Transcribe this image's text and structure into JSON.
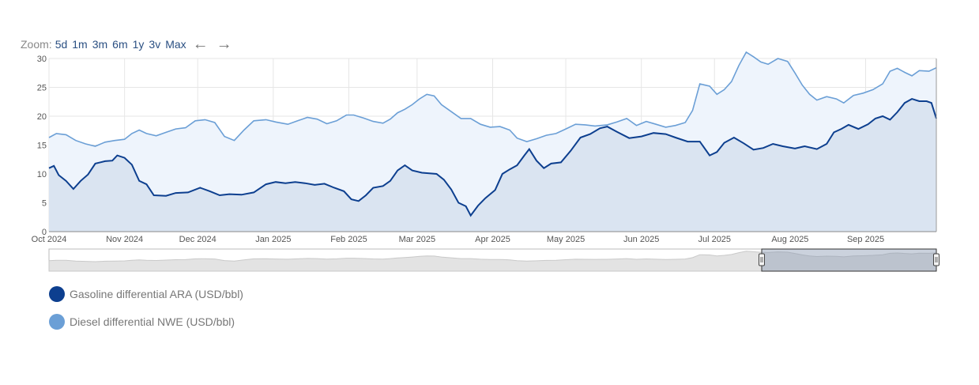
{
  "zoom": {
    "label": "Zoom:",
    "options": [
      "5d",
      "1m",
      "3m",
      "6m",
      "1y",
      "3v",
      "Max"
    ],
    "prev_icon": "arrow-left-icon",
    "next_icon": "arrow-right-icon"
  },
  "colors": {
    "gasoline_line": "#0d3f8f",
    "gasoline_fill": "#d6e1ef",
    "diesel_line": "#6b9fd6",
    "diesel_fill": "#eef4fc",
    "grid": "#e6e6e6",
    "navigator_fill": "#e3e3e3"
  },
  "chart_data": {
    "type": "area",
    "x_ticks": [
      "Oct 2024",
      "Nov 2024",
      "Dec 2024",
      "Jan 2025",
      "Feb 2025",
      "Mar 2025",
      "Apr 2025",
      "May 2025",
      "Jun 2025",
      "Jul 2025",
      "Aug 2025",
      "Sep 2025"
    ],
    "y_ticks": [
      "0",
      "5",
      "10",
      "15",
      "20",
      "25",
      "30"
    ],
    "ylim": [
      0,
      30
    ],
    "x_start": "2024-10-01",
    "x_end": "2025-09-30",
    "grid": true,
    "legend_position": "bottom-left",
    "series": [
      {
        "name": "Gasoline differential ARA (USD/bbl)",
        "points": [
          [
            "2024-10-01",
            11
          ],
          [
            "2024-10-03",
            11.4
          ],
          [
            "2024-10-05",
            9.8
          ],
          [
            "2024-10-08",
            8.8
          ],
          [
            "2024-10-11",
            7.4
          ],
          [
            "2024-10-14",
            8.8
          ],
          [
            "2024-10-17",
            9.9
          ],
          [
            "2024-10-20",
            11.8
          ],
          [
            "2024-10-24",
            12.2
          ],
          [
            "2024-10-27",
            12.3
          ],
          [
            "2024-10-29",
            13.2
          ],
          [
            "2024-11-01",
            12.8
          ],
          [
            "2024-11-04",
            11.6
          ],
          [
            "2024-11-07",
            8.8
          ],
          [
            "2024-11-10",
            8.2
          ],
          [
            "2024-11-13",
            6.3
          ],
          [
            "2024-11-18",
            6.2
          ],
          [
            "2024-11-22",
            6.7
          ],
          [
            "2024-11-27",
            6.8
          ],
          [
            "2024-12-02",
            7.6
          ],
          [
            "2024-12-06",
            7.0
          ],
          [
            "2024-12-10",
            6.3
          ],
          [
            "2024-12-14",
            6.5
          ],
          [
            "2024-12-19",
            6.4
          ],
          [
            "2024-12-24",
            6.8
          ],
          [
            "2024-12-29",
            8.2
          ],
          [
            "2025-01-02",
            8.6
          ],
          [
            "2025-01-06",
            8.4
          ],
          [
            "2025-01-10",
            8.6
          ],
          [
            "2025-01-14",
            8.4
          ],
          [
            "2025-01-18",
            8.1
          ],
          [
            "2025-01-22",
            8.3
          ],
          [
            "2025-01-26",
            7.6
          ],
          [
            "2025-01-30",
            7.0
          ],
          [
            "2025-02-02",
            5.6
          ],
          [
            "2025-02-05",
            5.3
          ],
          [
            "2025-02-08",
            6.3
          ],
          [
            "2025-02-11",
            7.6
          ],
          [
            "2025-02-15",
            7.9
          ],
          [
            "2025-02-18",
            8.8
          ],
          [
            "2025-02-21",
            10.6
          ],
          [
            "2025-02-24",
            11.5
          ],
          [
            "2025-02-27",
            10.6
          ],
          [
            "2025-03-03",
            10.2
          ],
          [
            "2025-03-09",
            10.0
          ],
          [
            "2025-03-12",
            9.0
          ],
          [
            "2025-03-15",
            7.3
          ],
          [
            "2025-03-18",
            5.0
          ],
          [
            "2025-03-21",
            4.4
          ],
          [
            "2025-03-23",
            2.8
          ],
          [
            "2025-03-26",
            4.5
          ],
          [
            "2025-03-29",
            5.8
          ],
          [
            "2025-04-02",
            7.2
          ],
          [
            "2025-04-05",
            10.0
          ],
          [
            "2025-04-08",
            10.8
          ],
          [
            "2025-04-11",
            11.5
          ],
          [
            "2025-04-14",
            13.2
          ],
          [
            "2025-04-16",
            14.3
          ],
          [
            "2025-04-19",
            12.3
          ],
          [
            "2025-04-22",
            11.0
          ],
          [
            "2025-04-25",
            11.8
          ],
          [
            "2025-04-29",
            12.0
          ],
          [
            "2025-05-03",
            14.0
          ],
          [
            "2025-05-07",
            16.3
          ],
          [
            "2025-05-11",
            16.9
          ],
          [
            "2025-05-15",
            17.9
          ],
          [
            "2025-05-18",
            18.2
          ],
          [
            "2025-05-22",
            17.3
          ],
          [
            "2025-05-27",
            16.2
          ],
          [
            "2025-06-01",
            16.5
          ],
          [
            "2025-06-06",
            17.1
          ],
          [
            "2025-06-11",
            16.9
          ],
          [
            "2025-06-15",
            16.3
          ],
          [
            "2025-06-20",
            15.6
          ],
          [
            "2025-06-25",
            15.6
          ],
          [
            "2025-06-29",
            13.2
          ],
          [
            "2025-07-02",
            13.8
          ],
          [
            "2025-07-05",
            15.4
          ],
          [
            "2025-07-09",
            16.3
          ],
          [
            "2025-07-13",
            15.3
          ],
          [
            "2025-07-17",
            14.2
          ],
          [
            "2025-07-21",
            14.5
          ],
          [
            "2025-07-25",
            15.2
          ],
          [
            "2025-07-29",
            14.8
          ],
          [
            "2025-08-03",
            14.4
          ],
          [
            "2025-08-07",
            14.8
          ],
          [
            "2025-08-12",
            14.3
          ],
          [
            "2025-08-16",
            15.2
          ],
          [
            "2025-08-19",
            17.2
          ],
          [
            "2025-08-22",
            17.8
          ],
          [
            "2025-08-25",
            18.5
          ],
          [
            "2025-08-29",
            17.8
          ],
          [
            "2025-09-02",
            18.6
          ],
          [
            "2025-09-05",
            19.6
          ],
          [
            "2025-09-08",
            20.0
          ],
          [
            "2025-09-11",
            19.4
          ],
          [
            "2025-09-14",
            20.7
          ],
          [
            "2025-09-17",
            22.3
          ],
          [
            "2025-09-20",
            23.0
          ],
          [
            "2025-09-23",
            22.6
          ],
          [
            "2025-09-26",
            22.6
          ],
          [
            "2025-09-28",
            22.3
          ],
          [
            "2025-09-30",
            19.6
          ]
        ]
      },
      {
        "name": "Diesel differential NWE (USD/bbl)",
        "points": [
          [
            "2024-10-01",
            16.3
          ],
          [
            "2024-10-04",
            17.0
          ],
          [
            "2024-10-08",
            16.8
          ],
          [
            "2024-10-12",
            15.8
          ],
          [
            "2024-10-16",
            15.2
          ],
          [
            "2024-10-20",
            14.8
          ],
          [
            "2024-10-24",
            15.5
          ],
          [
            "2024-10-28",
            15.8
          ],
          [
            "2024-11-01",
            16.0
          ],
          [
            "2024-11-04",
            17.0
          ],
          [
            "2024-11-07",
            17.6
          ],
          [
            "2024-11-10",
            17.0
          ],
          [
            "2024-11-14",
            16.6
          ],
          [
            "2024-11-18",
            17.2
          ],
          [
            "2024-11-22",
            17.8
          ],
          [
            "2024-11-26",
            18.0
          ],
          [
            "2024-11-30",
            19.2
          ],
          [
            "2024-12-04",
            19.4
          ],
          [
            "2024-12-08",
            18.9
          ],
          [
            "2024-12-12",
            16.5
          ],
          [
            "2024-12-16",
            15.8
          ],
          [
            "2024-12-20",
            17.6
          ],
          [
            "2024-12-24",
            19.2
          ],
          [
            "2024-12-29",
            19.4
          ],
          [
            "2025-01-02",
            19.0
          ],
          [
            "2025-01-07",
            18.6
          ],
          [
            "2025-01-11",
            19.2
          ],
          [
            "2025-01-15",
            19.8
          ],
          [
            "2025-01-19",
            19.5
          ],
          [
            "2025-01-23",
            18.7
          ],
          [
            "2025-01-27",
            19.2
          ],
          [
            "2025-01-31",
            20.2
          ],
          [
            "2025-02-03",
            20.2
          ],
          [
            "2025-02-07",
            19.7
          ],
          [
            "2025-02-11",
            19.1
          ],
          [
            "2025-02-15",
            18.8
          ],
          [
            "2025-02-18",
            19.5
          ],
          [
            "2025-02-21",
            20.6
          ],
          [
            "2025-02-24",
            21.2
          ],
          [
            "2025-02-27",
            22.0
          ],
          [
            "2025-03-02",
            23.0
          ],
          [
            "2025-03-05",
            23.8
          ],
          [
            "2025-03-08",
            23.5
          ],
          [
            "2025-03-11",
            22.0
          ],
          [
            "2025-03-15",
            20.8
          ],
          [
            "2025-03-19",
            19.6
          ],
          [
            "2025-03-23",
            19.6
          ],
          [
            "2025-03-27",
            18.6
          ],
          [
            "2025-03-31",
            18.1
          ],
          [
            "2025-04-04",
            18.2
          ],
          [
            "2025-04-08",
            17.6
          ],
          [
            "2025-04-11",
            16.2
          ],
          [
            "2025-04-15",
            15.6
          ],
          [
            "2025-04-19",
            16.1
          ],
          [
            "2025-04-23",
            16.7
          ],
          [
            "2025-04-27",
            17.0
          ],
          [
            "2025-05-01",
            17.8
          ],
          [
            "2025-05-05",
            18.6
          ],
          [
            "2025-05-09",
            18.5
          ],
          [
            "2025-05-13",
            18.3
          ],
          [
            "2025-05-18",
            18.5
          ],
          [
            "2025-05-22",
            19.0
          ],
          [
            "2025-05-26",
            19.6
          ],
          [
            "2025-05-30",
            18.4
          ],
          [
            "2025-06-03",
            19.1
          ],
          [
            "2025-06-07",
            18.6
          ],
          [
            "2025-06-11",
            18.1
          ],
          [
            "2025-06-15",
            18.4
          ],
          [
            "2025-06-19",
            18.9
          ],
          [
            "2025-06-22",
            21.0
          ],
          [
            "2025-06-25",
            25.6
          ],
          [
            "2025-06-29",
            25.2
          ],
          [
            "2025-07-02",
            23.8
          ],
          [
            "2025-07-05",
            24.6
          ],
          [
            "2025-07-08",
            26.0
          ],
          [
            "2025-07-11",
            28.8
          ],
          [
            "2025-07-14",
            31.1
          ],
          [
            "2025-07-17",
            30.3
          ],
          [
            "2025-07-20",
            29.4
          ],
          [
            "2025-07-23",
            29.0
          ],
          [
            "2025-07-27",
            30.0
          ],
          [
            "2025-07-31",
            29.5
          ],
          [
            "2025-08-03",
            27.5
          ],
          [
            "2025-08-06",
            25.4
          ],
          [
            "2025-08-09",
            23.8
          ],
          [
            "2025-08-12",
            22.8
          ],
          [
            "2025-08-16",
            23.4
          ],
          [
            "2025-08-20",
            23.0
          ],
          [
            "2025-08-23",
            22.3
          ],
          [
            "2025-08-27",
            23.6
          ],
          [
            "2025-08-31",
            24.0
          ],
          [
            "2025-09-04",
            24.6
          ],
          [
            "2025-09-08",
            25.6
          ],
          [
            "2025-09-11",
            27.8
          ],
          [
            "2025-09-14",
            28.3
          ],
          [
            "2025-09-17",
            27.6
          ],
          [
            "2025-09-20",
            27.0
          ],
          [
            "2025-09-23",
            27.9
          ],
          [
            "2025-09-27",
            27.8
          ],
          [
            "2025-09-30",
            28.4
          ]
        ]
      }
    ]
  }
}
